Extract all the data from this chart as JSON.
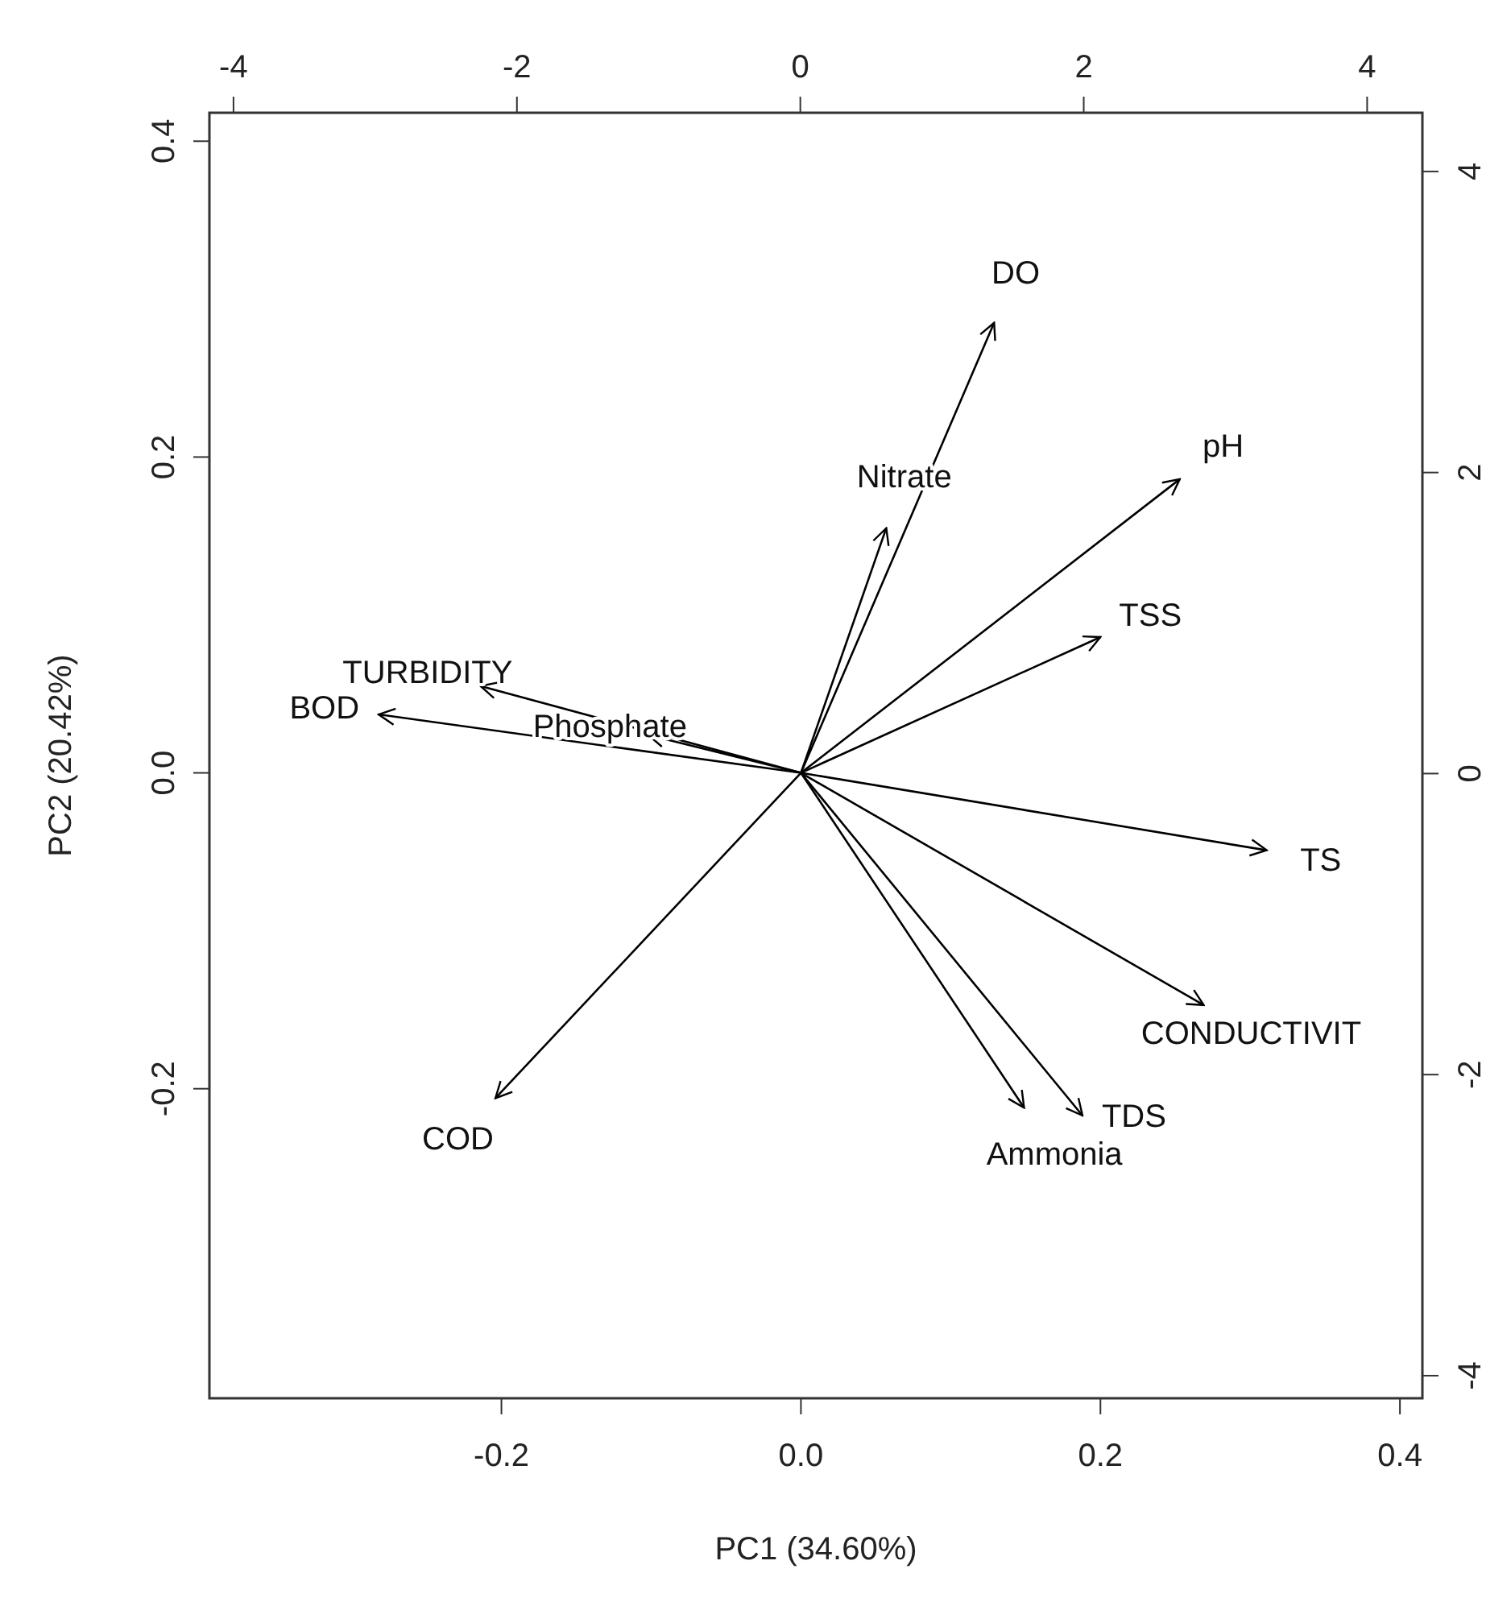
{
  "chart_data": {
    "type": "line",
    "xlabel": "PC1 (34.60%)",
    "ylabel": "PC2 (20.42%)",
    "xlim": [
      -0.395,
      0.415
    ],
    "ylim": [
      -0.396,
      0.418
    ],
    "xticks": [
      -0.2,
      {
        "value": 0,
        "label": "0.0"
      },
      0.2,
      0.4
    ],
    "yticks": [
      -0.2,
      {
        "value": 0,
        "label": "0.0"
      },
      0.2,
      0.4
    ],
    "x2lim": [
      -4.17,
      4.39
    ],
    "x2ticks": [
      -4,
      -2,
      0,
      2,
      4
    ],
    "y2lim": [
      -4.15,
      4.39
    ],
    "y2ticks": [
      -4,
      -2,
      0,
      2,
      4
    ],
    "grid": false,
    "legend": false,
    "series": [
      {
        "name": "DO",
        "color": "#000000",
        "x": [
          0,
          0.129
        ],
        "values": [
          0,
          0.285
        ]
      },
      {
        "name": "Nitrate",
        "color": "#000000",
        "x": [
          0,
          0.057
        ],
        "values": [
          0,
          0.155
        ]
      },
      {
        "name": "pH",
        "color": "#000000",
        "x": [
          0,
          0.253
        ],
        "values": [
          0,
          0.186
        ]
      },
      {
        "name": "TSS",
        "color": "#000000",
        "x": [
          0,
          0.2
        ],
        "values": [
          0,
          0.086
        ]
      },
      {
        "name": "BOD",
        "color": "#000000",
        "x": [
          0,
          -0.282
        ],
        "values": [
          0,
          0.037
        ]
      },
      {
        "name": "TURBIDITY",
        "color": "#000000",
        "x": [
          0,
          -0.214
        ],
        "values": [
          0,
          0.055
        ]
      },
      {
        "name": "Phosphate",
        "color": "#000000",
        "x": [
          0,
          -0.102
        ],
        "values": [
          0,
          0.024
        ]
      },
      {
        "name": "TS",
        "color": "#000000",
        "x": [
          0,
          0.311
        ],
        "values": [
          0,
          -0.049
        ]
      },
      {
        "name": "CONDUCTIVIT",
        "color": "#000000",
        "x": [
          0,
          0.269
        ],
        "values": [
          0,
          -0.147
        ]
      },
      {
        "name": "Ammonia",
        "color": "#000000",
        "x": [
          0,
          0.149
        ],
        "values": [
          0,
          -0.212
        ]
      },
      {
        "name": "TDS",
        "color": "#000000",
        "x": [
          0,
          0.188
        ],
        "values": [
          0,
          -0.217
        ]
      },
      {
        "name": "COD",
        "color": "#000000",
        "x": [
          0,
          -0.204
        ],
        "values": [
          0,
          -0.206
        ]
      }
    ]
  }
}
